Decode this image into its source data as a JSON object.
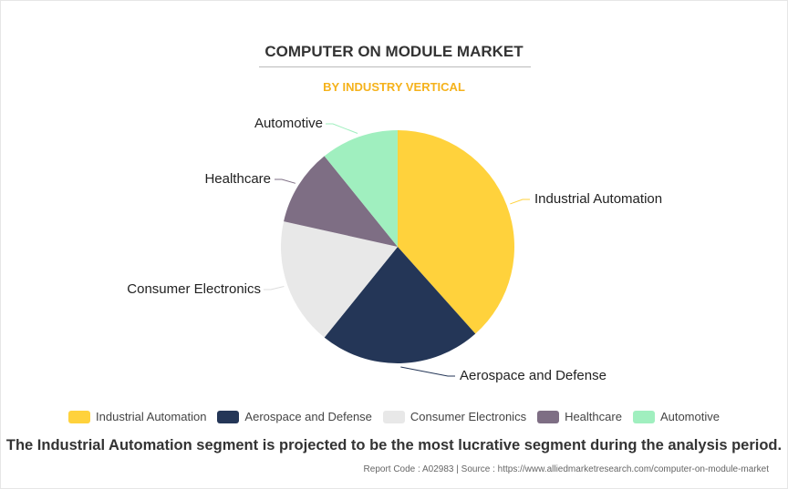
{
  "chart_data": {
    "type": "pie",
    "title": "COMPUTER ON MODULE MARKET",
    "subtitle": "BY INDUSTRY VERTICAL",
    "categories": [
      "Industrial Automation",
      "Aerospace and Defense",
      "Consumer Electronics",
      "Healthcare",
      "Automotive"
    ],
    "values": [
      38.4,
      22.4,
      17.7,
      10.7,
      10.8
    ],
    "colors": [
      "#ffd23c",
      "#243657",
      "#e8e8e8",
      "#7e6e84",
      "#a0efbf"
    ],
    "legend_placement": "bottom"
  },
  "caption": "The Industrial Automation segment is projected to be the most lucrative segment during the analysis period.",
  "footer": "Report Code : A02983  |  Source : https://www.alliedmarketresearch.com/computer-on-module-market"
}
